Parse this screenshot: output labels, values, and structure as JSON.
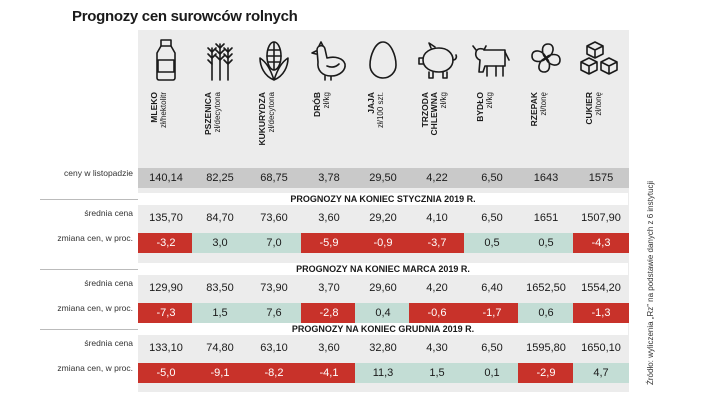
{
  "title": "Prognozy cen surowców rolnych",
  "source": "Źródło: wyliczenia „Rz” na podstawie danych z 6 instytucji",
  "colors": {
    "down": "#c8322a",
    "up": "#c3ddd5",
    "baseline": "#c9c9c9",
    "column": "#ececec"
  },
  "row_labels": {
    "current": "ceny w listopadzie",
    "avg": "średnia cena",
    "change": "zmiana cen, w proc."
  },
  "chart_data": {
    "type": "table",
    "title": "Prognozy cen surowców rolnych",
    "commodities": [
      {
        "name": "MLEKO",
        "unit": "zł/hektolitr",
        "icon": "milk-bottle-icon"
      },
      {
        "name": "PSZENICA",
        "unit": "zł/decytona",
        "icon": "wheat-icon"
      },
      {
        "name": "KUKURYDZA",
        "unit": "zł/decytona",
        "icon": "corn-icon"
      },
      {
        "name": "DRÓB",
        "unit": "zł/kg",
        "icon": "chicken-icon"
      },
      {
        "name": "JAJA",
        "unit": "zł/100 szt.",
        "icon": "egg-icon"
      },
      {
        "name": "TRZODA CHLEWNA",
        "unit": "zł/kg",
        "icon": "pig-icon"
      },
      {
        "name": "BYDŁO",
        "unit": "zł/kg",
        "icon": "cow-icon"
      },
      {
        "name": "RZEPAK",
        "unit": "zł/tonę",
        "icon": "rapeseed-flower-icon"
      },
      {
        "name": "CUKIER",
        "unit": "zł/tonę",
        "icon": "sugar-cubes-icon"
      }
    ],
    "current_prices": [
      "140,14",
      "82,25",
      "68,75",
      "3,78",
      "29,50",
      "4,22",
      "6,50",
      "1643",
      "1575"
    ],
    "forecasts": [
      {
        "period": "PROGNOZY NA KONIEC STYCZNIA 2019 R.",
        "avg_price": [
          "135,70",
          "84,70",
          "73,60",
          "3,60",
          "29,20",
          "4,10",
          "6,50",
          "1651",
          "1507,90"
        ],
        "change_pct": [
          "-3,2",
          "3,0",
          "7,0",
          "-5,9",
          "-0,9",
          "-3,7",
          "0,5",
          "0,5",
          "-4,3"
        ]
      },
      {
        "period": "PROGNOZY NA KONIEC MARCA 2019 R.",
        "avg_price": [
          "129,90",
          "83,50",
          "73,90",
          "3,70",
          "29,60",
          "4,20",
          "6,40",
          "1652,50",
          "1554,20"
        ],
        "change_pct": [
          "-7,3",
          "1,5",
          "7,6",
          "-2,8",
          "0,4",
          "-0,6",
          "-1,7",
          "0,6",
          "-1,3"
        ]
      },
      {
        "period": "PROGNOZY NA KONIEC GRUDNIA 2019 R.",
        "avg_price": [
          "133,10",
          "74,80",
          "63,10",
          "3,60",
          "32,80",
          "4,30",
          "6,50",
          "1595,80",
          "1650,10"
        ],
        "change_pct": [
          "-5,0",
          "-9,1",
          "-8,2",
          "-4,1",
          "11,3",
          "1,5",
          "0,1",
          "-2,9",
          "4,7"
        ]
      }
    ]
  }
}
